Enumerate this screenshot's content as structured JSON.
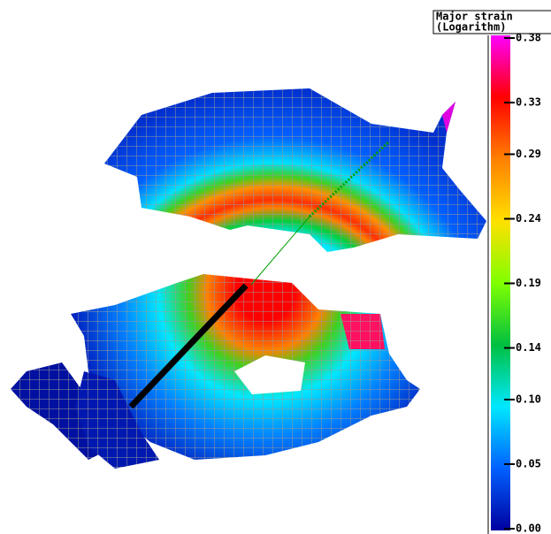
{
  "colorbar": {
    "title": [
      "Major strain",
      "(Logarithm)"
    ],
    "lim": [
      0,
      0.38
    ],
    "ticks": [
      {
        "value": 0,
        "label": "0.00"
      },
      0.05,
      {
        "value": 0.1,
        "label": "0.10"
      },
      0.14,
      0.19,
      0.24,
      0.29,
      0.33,
      0.38
    ],
    "colors": [
      "#0000a0",
      "#0060ff",
      "#00e8ff",
      "#00c040",
      "#80ff00",
      "#ffe000",
      "#ff8000",
      "#ff0000",
      "#ff00ff"
    ]
  }
}
